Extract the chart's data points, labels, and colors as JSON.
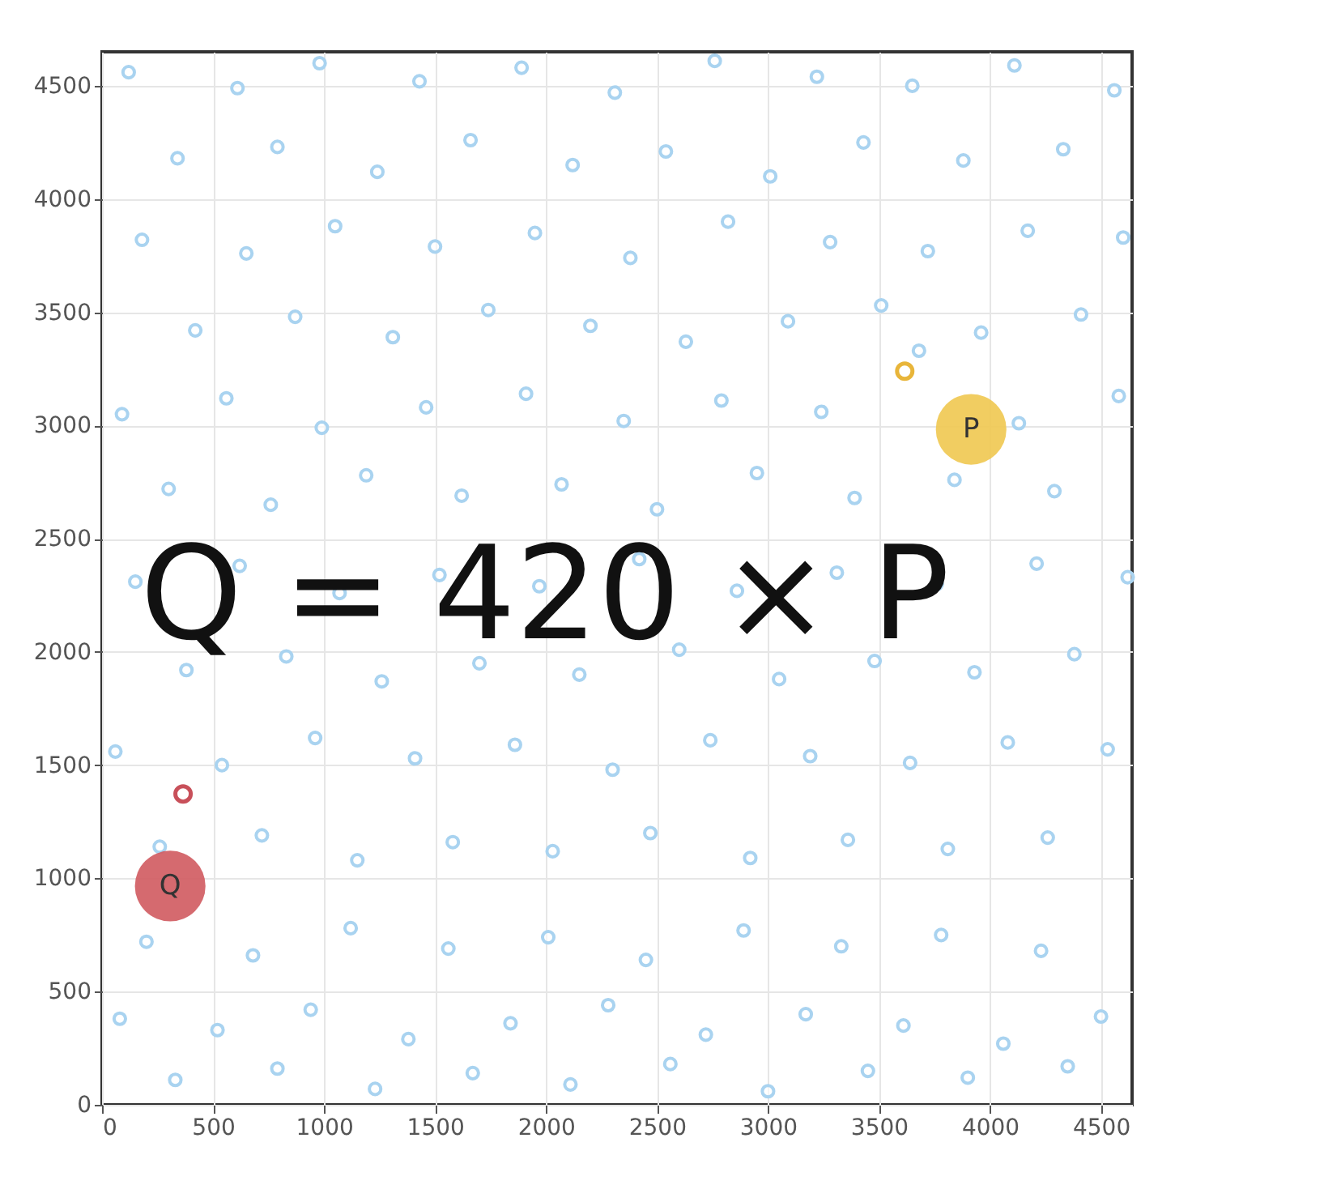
{
  "chart_data": {
    "type": "scatter",
    "xlim": [
      0,
      4640
    ],
    "ylim": [
      0,
      4650
    ],
    "xticks": [
      0,
      500,
      1000,
      1500,
      2000,
      2500,
      3000,
      3500,
      4000,
      4500
    ],
    "yticks": [
      0,
      500,
      1000,
      1500,
      2000,
      2500,
      3000,
      3500,
      4000,
      4500
    ],
    "grid": true,
    "marker": "circle",
    "annotations": [
      "Q = 420 × P",
      {
        "text": "Q",
        "x": 307,
        "y": 966
      },
      {
        "text": "P",
        "x": 3915,
        "y": 2983
      }
    ],
    "series": [
      {
        "color": "#a9d3f0",
        "x": [
          120,
          610,
          980,
          1430,
          1890,
          2310,
          2760,
          3220,
          3650,
          4110,
          4560,
          340,
          790,
          1240,
          1660,
          2120,
          2540,
          3010,
          3430,
          3880,
          4330,
          180,
          650,
          1050,
          1500,
          1950,
          2380,
          2820,
          3280,
          3720,
          4170,
          4600,
          420,
          870,
          1310,
          1740,
          2200,
          2630,
          3090,
          3510,
          3960,
          4410,
          90,
          560,
          990,
          1460,
          1910,
          2350,
          2790,
          3240,
          3680,
          4130,
          4580,
          300,
          760,
          1190,
          1620,
          2070,
          2500,
          2950,
          3390,
          3840,
          4290,
          150,
          620,
          1070,
          1520,
          1970,
          2420,
          2860,
          3310,
          3760,
          4210,
          4620,
          380,
          830,
          1260,
          1700,
          2150,
          2600,
          3050,
          3480,
          3930,
          4380,
          60,
          540,
          960,
          1410,
          1860,
          2300,
          2740,
          3190,
          3640,
          4080,
          4530,
          260,
          720,
          1150,
          1580,
          2030,
          2470,
          2920,
          3360,
          3810,
          4260,
          200,
          680,
          1120,
          1560,
          2010,
          2450,
          2890,
          3330,
          3780,
          4230,
          80,
          520,
          940,
          1380,
          1840,
          2280,
          2720,
          3170,
          3610,
          4060,
          4500,
          330,
          790,
          1230,
          1670,
          2110,
          2560,
          3000,
          3450,
          3900,
          4350
        ],
        "values": [
          4560,
          4490,
          4600,
          4520,
          4580,
          4470,
          4610,
          4540,
          4500,
          4590,
          4480,
          4180,
          4230,
          4120,
          4260,
          4150,
          4210,
          4100,
          4250,
          4170,
          4220,
          3820,
          3760,
          3880,
          3790,
          3850,
          3740,
          3900,
          3810,
          3770,
          3860,
          3830,
          3420,
          3480,
          3390,
          3510,
          3440,
          3370,
          3460,
          3530,
          3410,
          3490,
          3050,
          3120,
          2990,
          3080,
          3140,
          3020,
          3110,
          3060,
          3330,
          3010,
          3130,
          2720,
          2650,
          2780,
          2690,
          2740,
          2630,
          2790,
          2680,
          2760,
          2710,
          2310,
          2380,
          2260,
          2340,
          2290,
          2410,
          2270,
          2350,
          2300,
          2390,
          2330,
          1920,
          1980,
          1870,
          1950,
          1900,
          2010,
          1880,
          1960,
          1910,
          1990,
          1560,
          1500,
          1620,
          1530,
          1590,
          1480,
          1610,
          1540,
          1510,
          1600,
          1570,
          1140,
          1190,
          1080,
          1160,
          1120,
          1200,
          1090,
          1170,
          1130,
          1180,
          720,
          660,
          780,
          690,
          740,
          640,
          770,
          700,
          750,
          680,
          380,
          330,
          420,
          290,
          360,
          440,
          310,
          400,
          350,
          270,
          390,
          110,
          160,
          70,
          140,
          90,
          180,
          60,
          150,
          120,
          170
        ]
      },
      {
        "type": "scatter",
        "color": "#c8505a",
        "x": [
          365
        ],
        "values": [
          1373
        ]
      },
      {
        "type": "scatter",
        "color": "#e8b53a",
        "x": [
          3616
        ],
        "values": [
          3240
        ]
      },
      {
        "type": "bubble",
        "color": "#d05a5f",
        "x": [
          307
        ],
        "values": [
          966
        ],
        "sizes": [
          1
        ]
      },
      {
        "type": "bubble",
        "color": "#efc850",
        "x": [
          3915
        ],
        "values": [
          2983
        ],
        "sizes": [
          1
        ]
      }
    ]
  }
}
